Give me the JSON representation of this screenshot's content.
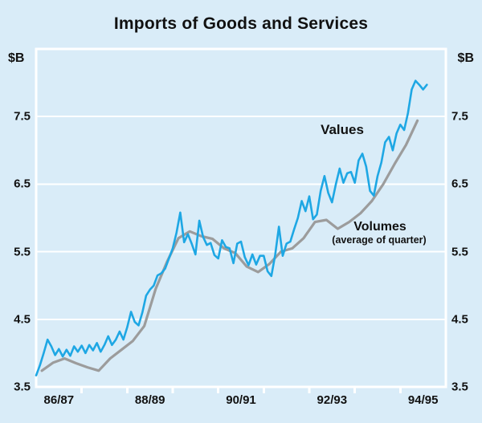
{
  "title": "Imports of Goods and Services",
  "axes": {
    "unit_left": "$B",
    "unit_right": "$B"
  },
  "labels": {
    "values_series": "Values",
    "volumes_series": "Volumes",
    "volumes_sub": "(average of quarter)"
  },
  "colors": {
    "background": "#d9ecf8",
    "grid": "#ffffff",
    "values_line": "#1ea7e4",
    "volumes_line": "#9c9c9c",
    "text": "#111111"
  },
  "chart_data": {
    "type": "line",
    "title": "Imports of Goods and Services",
    "ylabel": "$B",
    "ylim": [
      3.5,
      8.5
    ],
    "ygridlines": [
      4.5,
      5.5,
      6.5,
      7.5
    ],
    "ytick_labels": [
      3.5,
      4.5,
      5.5,
      6.5,
      7.5
    ],
    "grid": true,
    "legend_position": "inline-annotations",
    "x_axis": {
      "description": "Australian fiscal years, July 1986 to July 1995",
      "xlim_years": [
        0,
        9
      ],
      "year_tick_positions": [
        1,
        2,
        3,
        4,
        5,
        6,
        7,
        8
      ],
      "xtick_labels": [
        {
          "label": "86/87",
          "pos": 0.5
        },
        {
          "label": "88/89",
          "pos": 2.5
        },
        {
          "label": "90/91",
          "pos": 4.5
        },
        {
          "label": "92/93",
          "pos": 6.5
        },
        {
          "label": "94/95",
          "pos": 8.5
        }
      ]
    },
    "series": [
      {
        "name": "Volumes",
        "annotation": "(average of quarter)",
        "frequency": "quarterly",
        "color": "#9c9c9c",
        "stroke_width": 3.2,
        "x_start": 0.125,
        "x_step": 0.25,
        "values": [
          3.74,
          3.86,
          3.92,
          3.85,
          3.79,
          3.74,
          3.92,
          4.05,
          4.18,
          4.4,
          4.95,
          5.35,
          5.7,
          5.8,
          5.73,
          5.69,
          5.55,
          5.48,
          5.28,
          5.2,
          5.32,
          5.5,
          5.55,
          5.7,
          5.94,
          5.97,
          5.84,
          5.94,
          6.07,
          6.25,
          6.5,
          6.8,
          7.08,
          7.44
        ]
      },
      {
        "name": "Values",
        "frequency": "monthly",
        "color": "#1ea7e4",
        "stroke_width": 2.6,
        "x_start": 0,
        "x_step": 0.0833333,
        "values": [
          3.67,
          3.82,
          4.0,
          4.2,
          4.1,
          3.97,
          4.06,
          3.95,
          4.05,
          3.96,
          4.1,
          4.02,
          4.11,
          4.0,
          4.12,
          4.04,
          4.15,
          4.02,
          4.12,
          4.25,
          4.12,
          4.2,
          4.32,
          4.2,
          4.38,
          4.61,
          4.46,
          4.41,
          4.6,
          4.85,
          4.94,
          5.0,
          5.15,
          5.18,
          5.25,
          5.4,
          5.55,
          5.78,
          6.08,
          5.64,
          5.76,
          5.62,
          5.46,
          5.96,
          5.72,
          5.6,
          5.63,
          5.45,
          5.4,
          5.67,
          5.57,
          5.55,
          5.33,
          5.62,
          5.65,
          5.42,
          5.3,
          5.46,
          5.31,
          5.44,
          5.44,
          5.21,
          5.14,
          5.45,
          5.87,
          5.44,
          5.62,
          5.65,
          5.83,
          6.0,
          6.25,
          6.1,
          6.32,
          5.98,
          6.05,
          6.4,
          6.62,
          6.37,
          6.23,
          6.5,
          6.73,
          6.52,
          6.66,
          6.68,
          6.52,
          6.85,
          6.95,
          6.76,
          6.4,
          6.33,
          6.62,
          6.82,
          7.12,
          7.2,
          7.0,
          7.25,
          7.38,
          7.3,
          7.55,
          7.9,
          8.03,
          7.97,
          7.9,
          7.97
        ]
      }
    ]
  }
}
